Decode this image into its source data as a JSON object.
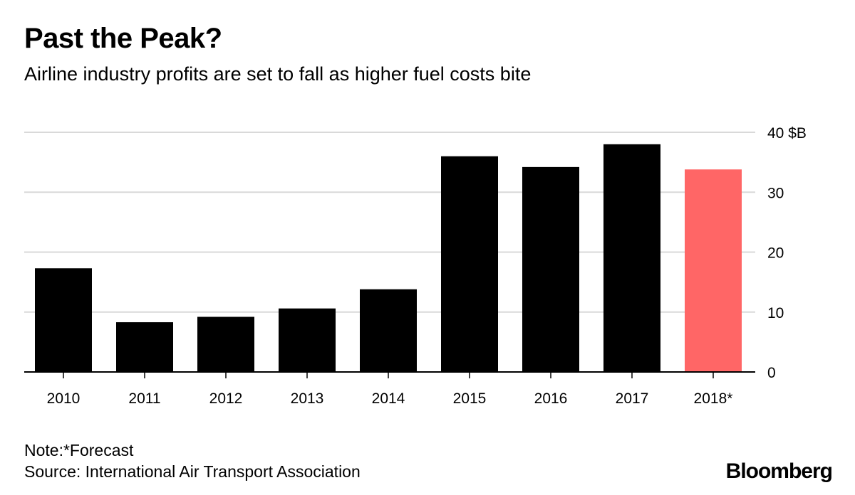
{
  "header": {
    "title": "Past the Peak?",
    "subtitle": "Airline industry profits are set to fall as higher fuel costs bite"
  },
  "footer": {
    "note": "Note:*Forecast",
    "source": "Source: International Air Transport Association",
    "brand": "Bloomberg"
  },
  "colors": {
    "bar": "#000000",
    "highlight": "#ff6666",
    "grid": "#d9d9d9"
  },
  "chart_data": {
    "type": "bar",
    "categories": [
      "2010",
      "2011",
      "2012",
      "2013",
      "2014",
      "2015",
      "2016",
      "2017",
      "2018*"
    ],
    "values": [
      17.3,
      8.3,
      9.2,
      10.6,
      13.8,
      36.0,
      34.2,
      38.0,
      33.8
    ],
    "highlight_index": 8,
    "ylim": [
      0,
      40
    ],
    "yticks": [
      "0",
      "10",
      "20",
      "30",
      "40 $B"
    ],
    "ytick_values": [
      0,
      10,
      20,
      30,
      40
    ],
    "y_axis_side": "right",
    "grid": true
  }
}
